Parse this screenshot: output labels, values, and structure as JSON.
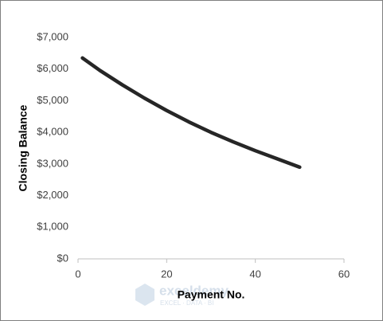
{
  "chart_data": {
    "type": "line",
    "x_label": "Payment No.",
    "y_label": "Closing Balance",
    "x": [
      1,
      5,
      10,
      15,
      20,
      25,
      30,
      35,
      40,
      45,
      50
    ],
    "series": [
      {
        "color": "#262626",
        "values": [
          6350,
          5950,
          5500,
          5080,
          4690,
          4330,
          4000,
          3700,
          3420,
          3160,
          2900
        ]
      }
    ],
    "xlim": [
      0,
      60
    ],
    "xticks": [
      0,
      20,
      40,
      60
    ],
    "ylim": [
      0,
      7000
    ],
    "yticks": [
      {
        "value": 0,
        "label": "$0"
      },
      {
        "value": 1000,
        "label": "$1,000"
      },
      {
        "value": 2000,
        "label": "$2,000"
      },
      {
        "value": 3000,
        "label": "$3,000"
      },
      {
        "value": 4000,
        "label": "$4,000"
      },
      {
        "value": 5000,
        "label": "$5,000"
      },
      {
        "value": 6000,
        "label": "$6,000"
      },
      {
        "value": 7000,
        "label": "$7,000"
      }
    ],
    "grid": false,
    "watermark": {
      "name": "exceldemy",
      "tagline": "EXCEL · DATA · BI"
    }
  }
}
